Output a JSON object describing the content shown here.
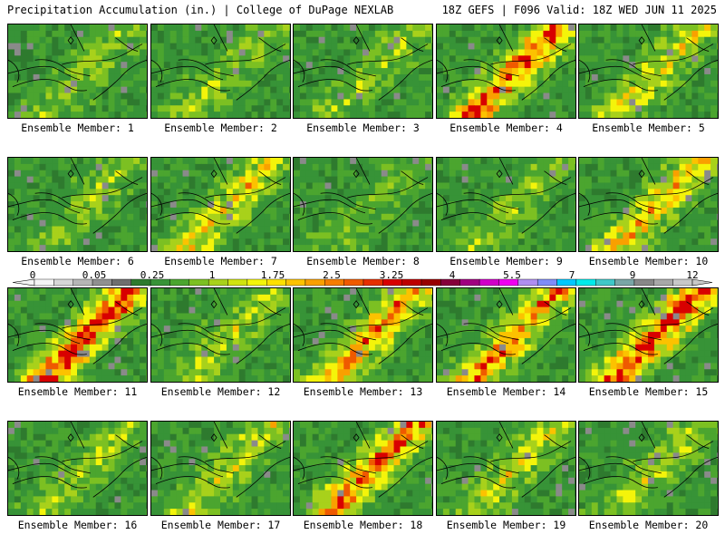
{
  "header": {
    "left": "Precipitation Accumulation (in.) | College of DuPage NEXLAB",
    "right": "18Z GEFS | F096 Valid: 18Z WED JUN 11 2025"
  },
  "label_prefix": "Ensemble Member: ",
  "members": [
    {
      "id": 1,
      "label": "Ensemble Member: 1",
      "intensity": 0.3
    },
    {
      "id": 2,
      "label": "Ensemble Member: 2",
      "intensity": 0.3
    },
    {
      "id": 3,
      "label": "Ensemble Member: 3",
      "intensity": 0.32
    },
    {
      "id": 4,
      "label": "Ensemble Member: 4",
      "intensity": 0.7
    },
    {
      "id": 5,
      "label": "Ensemble Member: 5",
      "intensity": 0.45
    },
    {
      "id": 6,
      "label": "Ensemble Member: 6",
      "intensity": 0.3
    },
    {
      "id": 7,
      "label": "Ensemble Member: 7",
      "intensity": 0.5
    },
    {
      "id": 8,
      "label": "Ensemble Member: 8",
      "intensity": 0.22
    },
    {
      "id": 9,
      "label": "Ensemble Member: 9",
      "intensity": 0.3
    },
    {
      "id": 10,
      "label": "Ensemble Member: 10",
      "intensity": 0.55
    },
    {
      "id": 11,
      "label": "Ensemble Member: 11",
      "intensity": 0.75
    },
    {
      "id": 12,
      "label": "Ensemble Member: 12",
      "intensity": 0.35
    },
    {
      "id": 13,
      "label": "Ensemble Member: 13",
      "intensity": 0.6
    },
    {
      "id": 14,
      "label": "Ensemble Member: 14",
      "intensity": 0.62
    },
    {
      "id": 15,
      "label": "Ensemble Member: 15",
      "intensity": 0.78
    },
    {
      "id": 16,
      "label": "Ensemble Member: 16",
      "intensity": 0.32
    },
    {
      "id": 17,
      "label": "Ensemble Member: 17",
      "intensity": 0.4
    },
    {
      "id": 18,
      "label": "Ensemble Member: 18",
      "intensity": 0.65
    },
    {
      "id": 19,
      "label": "Ensemble Member: 19",
      "intensity": 0.4
    },
    {
      "id": 20,
      "label": "Ensemble Member: 20",
      "intensity": 0.35
    }
  ],
  "colorbar": {
    "ticks": [
      "0",
      "0.05",
      "0.25",
      "1",
      "1.75",
      "2.5",
      "3.25",
      "4",
      "5.5",
      "7",
      "9",
      "12"
    ],
    "colors": [
      "#f4f4f4",
      "#d6d6d6",
      "#b6b6b6",
      "#909090",
      "#6f6f6f",
      "#2e7a2e",
      "#379337",
      "#4ba52f",
      "#7cc022",
      "#a8d11b",
      "#d0e30f",
      "#f4f40a",
      "#fde000",
      "#fcc200",
      "#f9a000",
      "#f57d00",
      "#ef5a00",
      "#e63000",
      "#d80000",
      "#bd0000",
      "#980000",
      "#85003a",
      "#a00080",
      "#d000c8",
      "#f000f0",
      "#b08ef0",
      "#7f8cf8",
      "#00c8ff",
      "#00eaea",
      "#40c8c8",
      "#7aa6a6",
      "#888888",
      "#a8a8a8",
      "#c8c8c8"
    ]
  }
}
